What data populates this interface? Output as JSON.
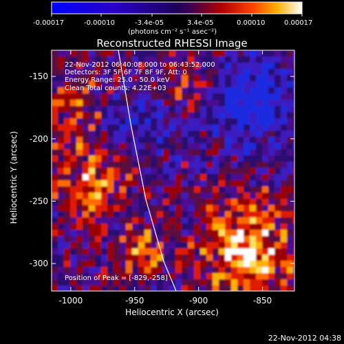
{
  "colorbar": {
    "tick_labels": [
      "-0.00017",
      "-0.00010",
      "-3.4e-05",
      "3.4e-05",
      "0.00010",
      "0.00017"
    ],
    "unit_label": "(photons cm⁻² s⁻¹ asec⁻²)",
    "min": -0.00017,
    "max": 0.00017
  },
  "title": "Reconstructed RHESSI Image",
  "info": {
    "line1": "22-Nov-2012 06:40:08.000 to 06:43:52.000",
    "line2": "Detectors: 3F 5F 6F 7F 8F 9F, Att: 0",
    "line3": "Energy Range: 25.0 - 50.0 keV",
    "line4": "Clean     Total counts: 4.22E+03"
  },
  "peak_label": "Position of Peak = [-829,-258]",
  "axes": {
    "xlabel": "Heliocentric X (arcsec)",
    "ylabel": "Heliocentric Y (arcsec)",
    "xticks": [
      "-1000",
      "-950",
      "-900",
      "-850"
    ],
    "yticks": [
      "-150",
      "-200",
      "-250",
      "-300"
    ],
    "x_tick_values": [
      -1000,
      -950,
      -900,
      -850
    ],
    "y_tick_values": [
      -150,
      -200,
      -250,
      -300
    ],
    "xlim": [
      -1015,
      -825
    ],
    "ylim": [
      -322,
      -129
    ]
  },
  "timestamp": "22-Nov-2012 04:38",
  "colors": {
    "background": "#000000",
    "neutral": "#4b0f8f",
    "limb_line": "#ffffff"
  }
}
